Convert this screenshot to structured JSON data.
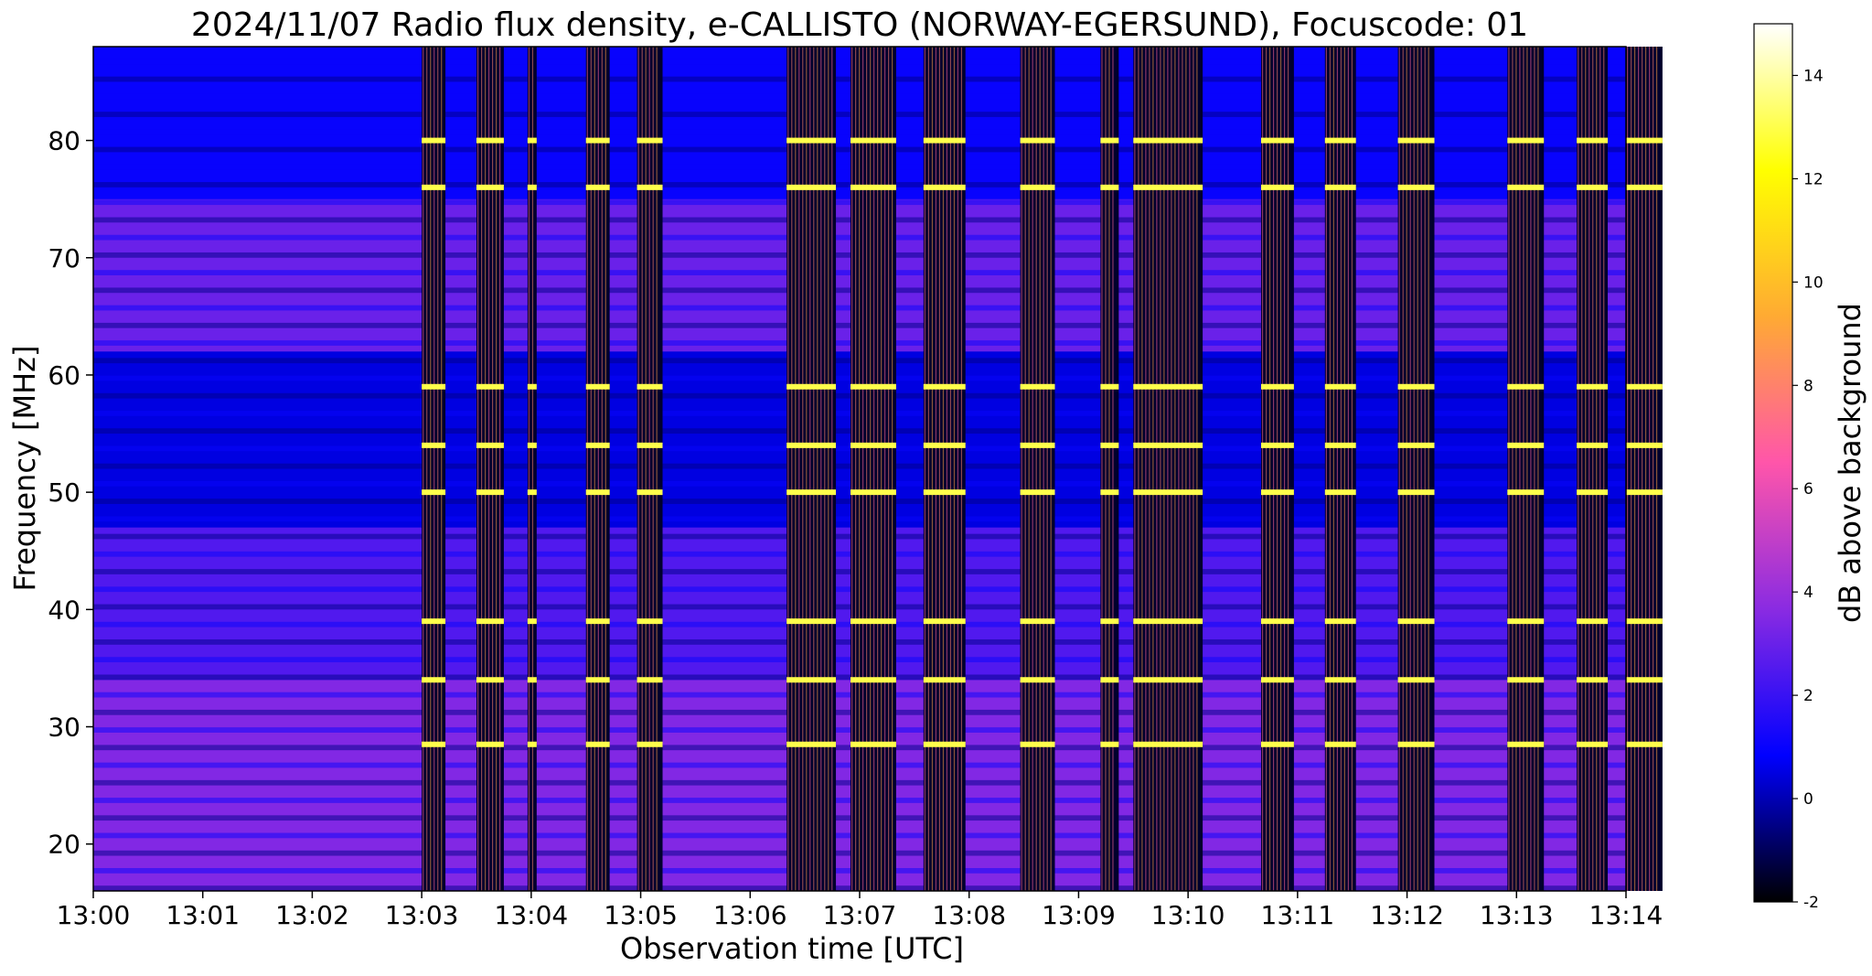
{
  "chart_data": {
    "type": "heatmap",
    "title": "2024/11/07  Radio flux density, e-CALLISTO (NORWAY-EGERSUND), Focuscode: 01",
    "xlabel": "Observation time [UTC]",
    "ylabel": "Frequency [MHz]",
    "x_ticks": [
      "13:00",
      "13:01",
      "13:02",
      "13:03",
      "13:04",
      "13:05",
      "13:06",
      "13:07",
      "13:08",
      "13:09",
      "13:10",
      "13:11",
      "13:12",
      "13:13",
      "13:14"
    ],
    "xlim": [
      "13:00",
      "13:14"
    ],
    "y_ticks": [
      20,
      30,
      40,
      50,
      60,
      70,
      80
    ],
    "ylim": [
      16,
      88
    ],
    "colorbar": {
      "label": "dB above background",
      "ticks": [
        -2,
        0,
        2,
        4,
        6,
        8,
        10,
        12,
        14
      ],
      "range": [
        -2,
        15
      ],
      "colormap": [
        "#000000",
        "#0000ff",
        "#8a2be2",
        "#ff55aa",
        "#ffaa33",
        "#ffff00",
        "#ffffff"
      ]
    },
    "grid": false,
    "bursts": [
      {
        "start": "13:03:00",
        "end": "13:03:13"
      },
      {
        "start": "13:03:30",
        "end": "13:03:45"
      },
      {
        "start": "13:03:58",
        "end": "13:04:03"
      },
      {
        "start": "13:04:30",
        "end": "13:04:43"
      },
      {
        "start": "13:04:58",
        "end": "13:05:12"
      },
      {
        "start": "13:06:20",
        "end": "13:06:47"
      },
      {
        "start": "13:06:55",
        "end": "13:07:20"
      },
      {
        "start": "13:07:35",
        "end": "13:07:58"
      },
      {
        "start": "13:08:28",
        "end": "13:08:47"
      },
      {
        "start": "13:09:12",
        "end": "13:09:22"
      },
      {
        "start": "13:09:30",
        "end": "13:10:08"
      },
      {
        "start": "13:10:40",
        "end": "13:10:58"
      },
      {
        "start": "13:11:15",
        "end": "13:11:32"
      },
      {
        "start": "13:11:55",
        "end": "13:12:15"
      },
      {
        "start": "13:12:55",
        "end": "13:13:15"
      },
      {
        "start": "13:13:33",
        "end": "13:13:50"
      },
      {
        "start": "13:14:00",
        "end": "13:14:20"
      }
    ],
    "bright_lines_mhz": [
      80,
      76,
      59,
      54,
      50,
      39,
      34,
      28.5
    ],
    "background_bands": [
      {
        "from": 16,
        "to": 34,
        "level": 3.5
      },
      {
        "from": 34,
        "to": 47,
        "level": 2.5
      },
      {
        "from": 47,
        "to": 62,
        "level": 0.5
      },
      {
        "from": 62,
        "to": 75,
        "level": 3.0
      },
      {
        "from": 75,
        "to": 88,
        "level": 1.0
      }
    ]
  }
}
